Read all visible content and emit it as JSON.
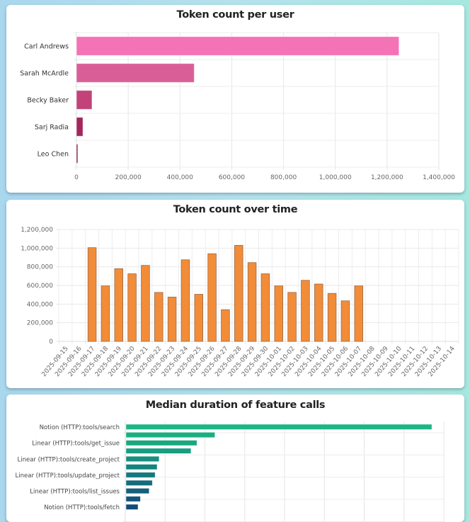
{
  "chart_data": [
    {
      "type": "bar",
      "orientation": "horizontal",
      "title": "Token count per user",
      "categories": [
        "Carl Andrews",
        "Sarah McArdle",
        "Becky Baker",
        "Sarj Radia",
        "Leo Chen"
      ],
      "values": [
        1246000,
        455000,
        60000,
        25000,
        5000
      ],
      "colors": [
        "#f472b6",
        "#d95e98",
        "#c2427a",
        "#a3275a",
        "#7a1440"
      ],
      "xlim": [
        0,
        1400000
      ],
      "xticks": [
        0,
        200000,
        400000,
        600000,
        800000,
        1000000,
        1200000,
        1400000
      ],
      "xtick_labels": [
        "0",
        "200,000",
        "400,000",
        "600,000",
        "800,000",
        "1,000,000",
        "1,200,000",
        "1,400,000"
      ],
      "xlabel": "",
      "ylabel": "",
      "grid": true,
      "legend": "none"
    },
    {
      "type": "bar",
      "title": "Token count over time",
      "categories": [
        "2025-09-15",
        "2025-09-16",
        "2025-09-17",
        "2025-09-18",
        "2025-09-19",
        "2025-09-20",
        "2025-09-21",
        "2025-09-22",
        "2025-09-23",
        "2025-09-24",
        "2025-09-25",
        "2025-09-26",
        "2025-09-27",
        "2025-09-28",
        "2025-09-29",
        "2025-09-30",
        "2025-10-01",
        "2025-10-02",
        "2025-10-03",
        "2025-10-04",
        "2025-10-05",
        "2025-10-06",
        "2025-10-07",
        "2025-10-08",
        "2025-10-09",
        "2025-10-10",
        "2025-10-11",
        "2025-10-12",
        "2025-10-13",
        "2025-10-14"
      ],
      "values": [
        0,
        0,
        1005000,
        595000,
        780000,
        725000,
        815000,
        525000,
        475000,
        875000,
        505000,
        940000,
        340000,
        1030000,
        845000,
        725000,
        595000,
        525000,
        655000,
        615000,
        515000,
        435000,
        595000,
        0,
        0,
        0,
        0,
        0,
        0,
        0
      ],
      "color": "#f28c38",
      "stroke": "#9a6a4a",
      "ylim": [
        0,
        1200000
      ],
      "yticks": [
        0,
        200000,
        400000,
        600000,
        800000,
        1000000,
        1200000
      ],
      "ytick_labels": [
        "0",
        "200,000",
        "400,000",
        "600,000",
        "800,000",
        "1,000,000",
        "1,200,000"
      ],
      "xlabel": "",
      "ylabel": "",
      "grid": true,
      "legend": "none"
    },
    {
      "type": "bar",
      "orientation": "horizontal",
      "title": "Median duration of feature calls",
      "categories": [
        "Notion (HTTP):tools/search",
        "",
        "Linear (HTTP):tools/get_issue",
        "",
        "Linear (HTTP):tools/create_project",
        "",
        "Linear (HTTP):tools/update_project",
        "",
        "Linear (HTTP):tools/list_issues",
        "",
        "Notion (HTTP):tools/fetch"
      ],
      "values": [
        7.7,
        2.25,
        1.8,
        1.65,
        0.85,
        0.8,
        0.75,
        0.68,
        0.6,
        0.38,
        0.32
      ],
      "colors": [
        "#1db584",
        "#1bae82",
        "#19a781",
        "#179d80",
        "#168f80",
        "#15847f",
        "#15787e",
        "#156c7d",
        "#14607c",
        "#13547c",
        "#124a7a"
      ],
      "xlim": [
        0,
        8
      ],
      "units": "relative (axis tick labels not visible)",
      "xlabel": "",
      "ylabel": "",
      "grid": true,
      "legend": "none"
    }
  ]
}
